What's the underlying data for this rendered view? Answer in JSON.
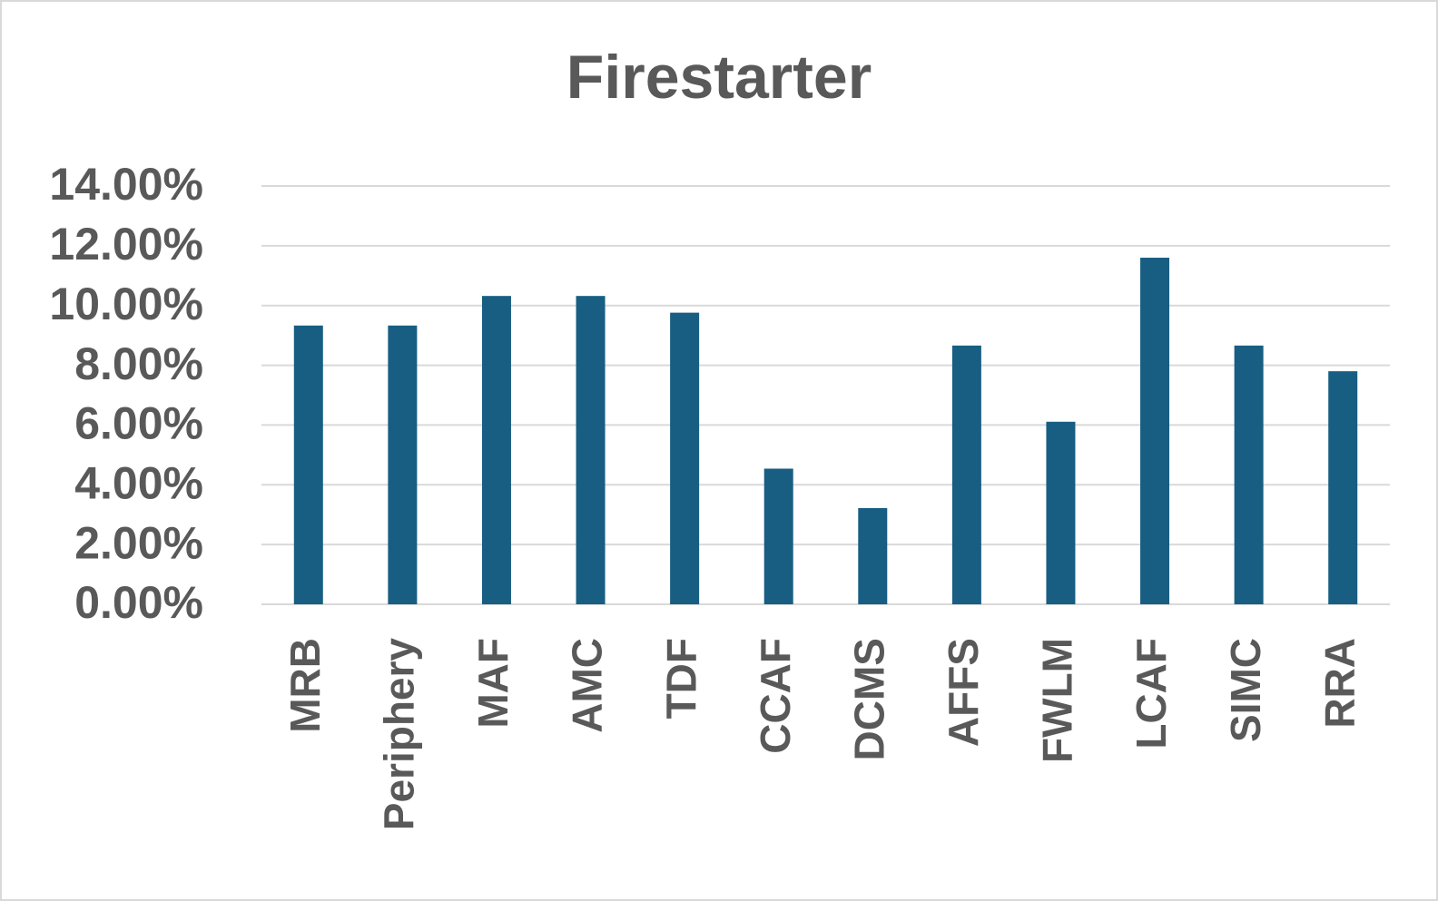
{
  "chart_data": {
    "type": "bar",
    "title": "Firestarter",
    "categories": [
      "MRB",
      "Periphery",
      "MAF",
      "AMC",
      "TDF",
      "CCAF",
      "DCMS",
      "AFFS",
      "FWLM",
      "LCAF",
      "SIMC",
      "RRA"
    ],
    "values": [
      9.33,
      9.33,
      10.32,
      10.32,
      9.76,
      4.54,
      3.22,
      8.66,
      6.11,
      11.6,
      8.66,
      7.8
    ],
    "color": "#175e82",
    "ylim": [
      0,
      14
    ],
    "yticks": [
      {
        "value": 0,
        "label": "0.00%"
      },
      {
        "value": 2,
        "label": "2.00%"
      },
      {
        "value": 4,
        "label": "4.00%"
      },
      {
        "value": 6,
        "label": "6.00%"
      },
      {
        "value": 8,
        "label": "8.00%"
      },
      {
        "value": 10,
        "label": "10.00%"
      },
      {
        "value": 12,
        "label": "12.00%"
      },
      {
        "value": 14,
        "label": "14.00%"
      }
    ],
    "grid": true
  }
}
